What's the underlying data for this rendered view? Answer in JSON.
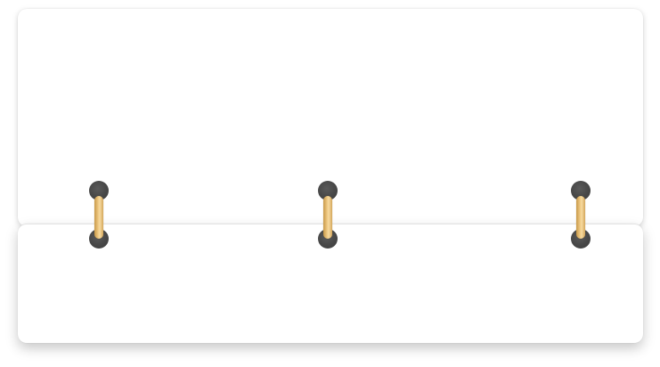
{
  "top_panel": {},
  "bottom_panel": {},
  "binder": {
    "ring_count": 3,
    "ring_color": "#e9bd6f",
    "hole_color": "#474747",
    "icon": "binder-ring-icon"
  }
}
